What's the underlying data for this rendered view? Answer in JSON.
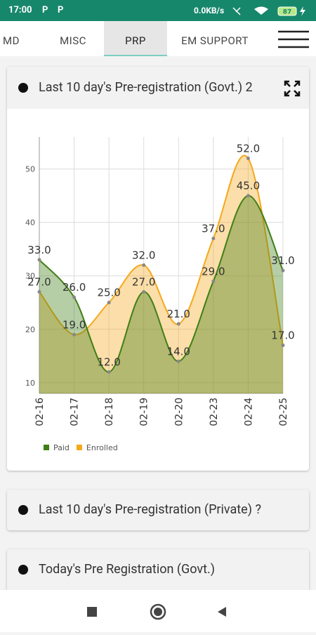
{
  "status_bar": {
    "time": "17:00",
    "icons": [
      "P",
      "P"
    ],
    "network_speed": "0.0KB/s",
    "battery": "87"
  },
  "tabs": [
    "MD",
    "MISC",
    "PRP",
    "EM SUPPORT"
  ],
  "cards": [
    {
      "title": "Last 10 day's Pre-registration (Govt.) 2"
    },
    {
      "title": "Last 10 day's Pre-registration (Private) ?"
    },
    {
      "title": "Today's Pre Registration (Govt.)"
    }
  ],
  "chart_data": {
    "type": "area-spline",
    "categories": [
      "02-16",
      "02-17",
      "02-18",
      "02-19",
      "02-20",
      "02-23",
      "02-24",
      "02-25"
    ],
    "series": [
      {
        "name": "Paid",
        "color": "#3f7f16",
        "values": [
          33,
          26,
          12,
          27,
          14,
          29,
          45,
          31
        ],
        "value_labels": [
          "33.0",
          "26.0",
          "12.0",
          "27.0",
          "14.0",
          "29.0",
          "45.0",
          "31.0"
        ]
      },
      {
        "name": "Enrolled",
        "color": "#f5a81c",
        "values": [
          27,
          19,
          25,
          32,
          21,
          37,
          52,
          17
        ],
        "value_labels": [
          "27.0",
          "19.0",
          "25.0",
          "32.0",
          "21.0",
          "37.0",
          "52.0",
          "17.0"
        ]
      }
    ],
    "ylim": [
      8,
      56
    ],
    "yticks": [
      10,
      20,
      30,
      40,
      50
    ],
    "grid": true
  }
}
